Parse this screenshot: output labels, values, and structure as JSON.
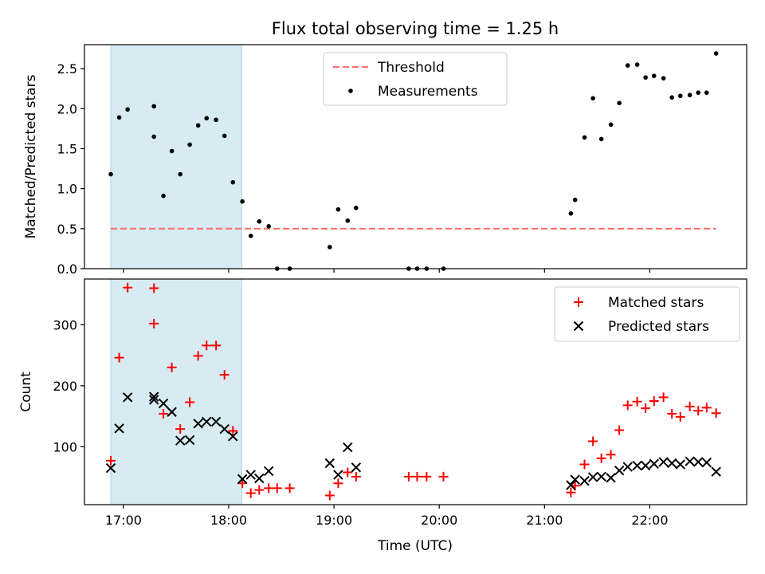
{
  "chart_data": {
    "title": "Flux total observing time = 1.25 h",
    "xlabel": "Time (UTC)",
    "x_tick_labels": [
      "17:00",
      "18:00",
      "19:00",
      "20:00",
      "21:00",
      "22:00"
    ],
    "x_ticks_hours": [
      17,
      18,
      19,
      20,
      21,
      22
    ],
    "xlim_hours": [
      16.63,
      22.92
    ],
    "shaded_span_hours": [
      16.88,
      18.125
    ],
    "shaded_color": "#add8e6",
    "panels": [
      {
        "type": "scatter",
        "ylabel": "Matched/Predicted stars",
        "ylim": [
          0,
          2.8
        ],
        "y_ticks": [
          "0.0",
          "0.5",
          "1.0",
          "1.5",
          "2.0",
          "2.5"
        ],
        "y_tick_values": [
          0,
          0.5,
          1.0,
          1.5,
          2.0,
          2.5
        ],
        "threshold": {
          "name": "Threshold",
          "value": 0.5,
          "x_range_hours": [
            16.88,
            22.63
          ],
          "color": "#ff7070"
        },
        "series": [
          {
            "name": "Measurements",
            "color": "#000000",
            "x_hours": [
              16.88,
              16.96,
              17.04,
              17.29,
              17.29,
              17.38,
              17.46,
              17.54,
              17.63,
              17.71,
              17.79,
              17.88,
              17.96,
              18.04,
              18.13,
              18.21,
              18.29,
              18.38,
              18.46,
              18.58,
              18.96,
              19.04,
              19.13,
              19.21,
              19.71,
              19.79,
              19.88,
              20.04,
              21.25,
              21.29,
              21.38,
              21.46,
              21.54,
              21.63,
              21.71,
              21.79,
              21.88,
              21.96,
              22.04,
              22.13,
              22.21,
              22.29,
              22.38,
              22.46,
              22.54,
              22.63
            ],
            "y": [
              1.18,
              1.89,
              1.99,
              2.03,
              1.65,
              0.91,
              1.47,
              1.18,
              1.55,
              1.79,
              1.88,
              1.86,
              1.66,
              1.08,
              0.84,
              0.41,
              0.59,
              0.53,
              0.0,
              0.0,
              0.27,
              0.74,
              0.6,
              0.76,
              0.0,
              0.0,
              0.0,
              0.0,
              0.69,
              0.86,
              1.64,
              2.13,
              1.62,
              1.8,
              2.07,
              2.54,
              2.55,
              2.39,
              2.41,
              2.38,
              2.14,
              2.16,
              2.17,
              2.2,
              2.2,
              2.69
            ]
          }
        ],
        "legend_position": "upper center"
      },
      {
        "type": "scatter",
        "ylabel": "Count",
        "ylim": [
          5,
          375
        ],
        "y_ticks": [
          "100",
          "200",
          "300"
        ],
        "y_tick_values": [
          100,
          200,
          300
        ],
        "series": [
          {
            "name": "Matched stars",
            "marker": "+",
            "color": "#ff0000",
            "x_hours": [
              16.88,
              16.96,
              17.04,
              17.29,
              17.29,
              17.38,
              17.46,
              17.54,
              17.63,
              17.71,
              17.79,
              17.88,
              17.96,
              18.04,
              18.13,
              18.21,
              18.29,
              18.38,
              18.46,
              18.58,
              18.96,
              19.04,
              19.13,
              19.21,
              19.71,
              19.79,
              19.88,
              20.04,
              21.25,
              21.29,
              21.38,
              21.46,
              21.54,
              21.63,
              21.71,
              21.79,
              21.88,
              21.96,
              22.04,
              22.13,
              22.21,
              22.29,
              22.38,
              22.46,
              22.54,
              22.63
            ],
            "y": [
              77,
              246,
              361,
              360,
              302,
              154,
              230,
              129,
              173,
              249,
              266,
              266,
              218,
              126,
              40,
              24,
              29,
              32,
              32,
              32,
              20,
              40,
              58,
              51,
              51,
              51,
              51,
              51,
              25,
              36,
              71,
              109,
              81,
              87,
              127,
              168,
              174,
              163,
              175,
              181,
              154,
              149,
              166,
              159,
              164,
              155
            ]
          },
          {
            "name": "Predicted stars",
            "marker": "x",
            "color": "#000000",
            "x_hours": [
              16.88,
              16.96,
              17.04,
              17.29,
              17.29,
              17.38,
              17.46,
              17.54,
              17.63,
              17.71,
              17.79,
              17.88,
              17.96,
              18.04,
              18.13,
              18.21,
              18.29,
              18.38,
              18.96,
              19.04,
              19.13,
              19.21,
              21.25,
              21.29,
              21.38,
              21.46,
              21.54,
              21.63,
              21.71,
              21.79,
              21.88,
              21.96,
              22.04,
              22.13,
              22.21,
              22.29,
              22.38,
              22.46,
              22.54,
              22.63
            ],
            "y": [
              65,
              130,
              181,
              177,
              182,
              171,
              157,
              110,
              111,
              138,
              141,
              141,
              129,
              117,
              47,
              54,
              48,
              60,
              73,
              54,
              99,
              66,
              37,
              46,
              44,
              50,
              51,
              49,
              61,
              67,
              69,
              69,
              72,
              75,
              73,
              71,
              76,
              75,
              74,
              59
            ]
          }
        ],
        "legend_position": "upper right"
      }
    ]
  }
}
